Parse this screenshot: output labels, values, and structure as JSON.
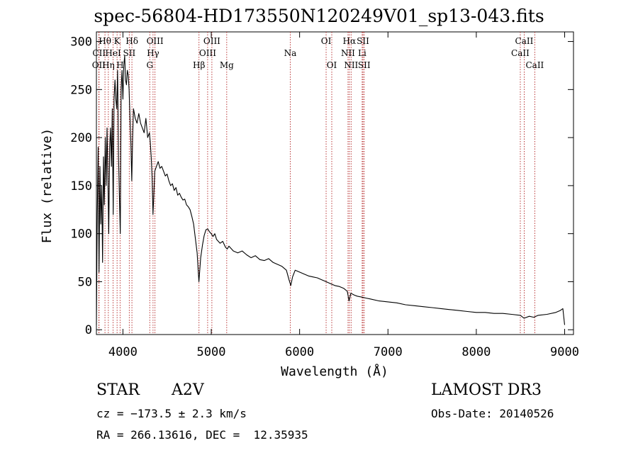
{
  "title": "spec-56804-HD173550N120249V01_sp13-043.fits",
  "info": {
    "class_label": "STAR",
    "subclass_label": "A2V",
    "survey": "LAMOST DR3",
    "cz": "cz = −173.5 ± 2.3 km/s",
    "obs_date": "Obs-Date: 20140526",
    "radec": "RA = 266.13616, DEC =  12.35935"
  },
  "chart_data": {
    "type": "line",
    "title": "spec-56804-HD173550N120249V01_sp13-043.fits",
    "xlabel": "Wavelength (Å)",
    "ylabel": "Flux (relative)",
    "xlim": [
      3700,
      9100
    ],
    "ylim": [
      -5,
      310
    ],
    "x_ticks": [
      4000,
      5000,
      6000,
      7000,
      8000,
      9000
    ],
    "y_ticks": [
      0,
      50,
      100,
      150,
      200,
      250,
      300
    ],
    "line_color": "#000000",
    "marker_color": "#b22222",
    "series": [
      {
        "name": "flux",
        "points": [
          [
            3700,
            5
          ],
          [
            3710,
            120
          ],
          [
            3720,
            190
          ],
          [
            3730,
            60
          ],
          [
            3740,
            170
          ],
          [
            3750,
            110
          ],
          [
            3760,
            150
          ],
          [
            3770,
            70
          ],
          [
            3780,
            180
          ],
          [
            3790,
            130
          ],
          [
            3800,
            200
          ],
          [
            3810,
            150
          ],
          [
            3820,
            210
          ],
          [
            3830,
            160
          ],
          [
            3840,
            100
          ],
          [
            3850,
            190
          ],
          [
            3860,
            210
          ],
          [
            3870,
            170
          ],
          [
            3880,
            230
          ],
          [
            3890,
            120
          ],
          [
            3900,
            240
          ],
          [
            3910,
            260
          ],
          [
            3920,
            240
          ],
          [
            3930,
            230
          ],
          [
            3940,
            270
          ],
          [
            3950,
            180
          ],
          [
            3960,
            140
          ],
          [
            3970,
            100
          ],
          [
            3980,
            250
          ],
          [
            3990,
            270
          ],
          [
            4000,
            240
          ],
          [
            4010,
            275
          ],
          [
            4020,
            285
          ],
          [
            4030,
            260
          ],
          [
            4040,
            255
          ],
          [
            4050,
            270
          ],
          [
            4060,
            265
          ],
          [
            4070,
            250
          ],
          [
            4080,
            220
          ],
          [
            4090,
            195
          ],
          [
            4100,
            155
          ],
          [
            4110,
            200
          ],
          [
            4120,
            230
          ],
          [
            4140,
            220
          ],
          [
            4160,
            215
          ],
          [
            4180,
            225
          ],
          [
            4200,
            215
          ],
          [
            4220,
            210
          ],
          [
            4240,
            205
          ],
          [
            4260,
            220
          ],
          [
            4280,
            200
          ],
          [
            4300,
            205
          ],
          [
            4310,
            195
          ],
          [
            4320,
            180
          ],
          [
            4330,
            160
          ],
          [
            4340,
            120
          ],
          [
            4350,
            140
          ],
          [
            4360,
            165
          ],
          [
            4380,
            170
          ],
          [
            4400,
            175
          ],
          [
            4420,
            168
          ],
          [
            4440,
            170
          ],
          [
            4460,
            165
          ],
          [
            4480,
            160
          ],
          [
            4500,
            162
          ],
          [
            4520,
            155
          ],
          [
            4540,
            150
          ],
          [
            4560,
            152
          ],
          [
            4580,
            145
          ],
          [
            4600,
            148
          ],
          [
            4620,
            140
          ],
          [
            4640,
            142
          ],
          [
            4660,
            138
          ],
          [
            4680,
            135
          ],
          [
            4700,
            136
          ],
          [
            4720,
            130
          ],
          [
            4740,
            128
          ],
          [
            4760,
            125
          ],
          [
            4780,
            118
          ],
          [
            4800,
            110
          ],
          [
            4820,
            95
          ],
          [
            4840,
            80
          ],
          [
            4850,
            65
          ],
          [
            4860,
            50
          ],
          [
            4870,
            62
          ],
          [
            4880,
            75
          ],
          [
            4900,
            88
          ],
          [
            4920,
            98
          ],
          [
            4940,
            104
          ],
          [
            4960,
            105
          ],
          [
            4980,
            102
          ],
          [
            5000,
            100
          ],
          [
            5020,
            97
          ],
          [
            5040,
            100
          ],
          [
            5060,
            94
          ],
          [
            5080,
            92
          ],
          [
            5100,
            90
          ],
          [
            5130,
            92
          ],
          [
            5160,
            86
          ],
          [
            5180,
            84
          ],
          [
            5200,
            87
          ],
          [
            5250,
            82
          ],
          [
            5300,
            80
          ],
          [
            5350,
            82
          ],
          [
            5400,
            78
          ],
          [
            5450,
            75
          ],
          [
            5500,
            77
          ],
          [
            5550,
            73
          ],
          [
            5600,
            72
          ],
          [
            5650,
            74
          ],
          [
            5700,
            70
          ],
          [
            5750,
            68
          ],
          [
            5800,
            66
          ],
          [
            5850,
            62
          ],
          [
            5880,
            52
          ],
          [
            5900,
            46
          ],
          [
            5920,
            55
          ],
          [
            5950,
            62
          ],
          [
            6000,
            60
          ],
          [
            6050,
            58
          ],
          [
            6100,
            56
          ],
          [
            6150,
            55
          ],
          [
            6200,
            54
          ],
          [
            6250,
            52
          ],
          [
            6300,
            50
          ],
          [
            6350,
            48
          ],
          [
            6400,
            46
          ],
          [
            6450,
            45
          ],
          [
            6500,
            43
          ],
          [
            6540,
            40
          ],
          [
            6560,
            30
          ],
          [
            6580,
            38
          ],
          [
            6620,
            36
          ],
          [
            6650,
            35
          ],
          [
            6700,
            34
          ],
          [
            6750,
            33
          ],
          [
            6800,
            32
          ],
          [
            6900,
            30
          ],
          [
            7000,
            29
          ],
          [
            7100,
            28
          ],
          [
            7200,
            26
          ],
          [
            7300,
            25
          ],
          [
            7400,
            24
          ],
          [
            7500,
            23
          ],
          [
            7600,
            22
          ],
          [
            7700,
            21
          ],
          [
            7800,
            20
          ],
          [
            7900,
            19
          ],
          [
            8000,
            18
          ],
          [
            8100,
            18
          ],
          [
            8200,
            17
          ],
          [
            8300,
            17
          ],
          [
            8400,
            16
          ],
          [
            8500,
            15
          ],
          [
            8540,
            12
          ],
          [
            8600,
            14
          ],
          [
            8650,
            13
          ],
          [
            8700,
            15
          ],
          [
            8800,
            16
          ],
          [
            8900,
            18
          ],
          [
            8950,
            20
          ],
          [
            8980,
            22
          ],
          [
            9000,
            5
          ]
        ]
      }
    ],
    "lines": [
      {
        "name": "OII",
        "wavelength": 3727,
        "row": 2
      },
      {
        "name": "CII",
        "wavelength": 3730,
        "row": 1
      },
      {
        "name": "Hθ",
        "wavelength": 3797,
        "row": 0
      },
      {
        "name": "Hη",
        "wavelength": 3835,
        "row": 2
      },
      {
        "name": "HeI",
        "wavelength": 3889,
        "row": 1
      },
      {
        "name": "K",
        "wavelength": 3934,
        "row": 0
      },
      {
        "name": "H",
        "wavelength": 3968,
        "row": 2
      },
      {
        "name": "SII",
        "wavelength": 4072,
        "row": 1
      },
      {
        "name": "Hδ",
        "wavelength": 4102,
        "row": 0
      },
      {
        "name": "G",
        "wavelength": 4304,
        "row": 2
      },
      {
        "name": "Hγ",
        "wavelength": 4341,
        "row": 1
      },
      {
        "name": "OIII",
        "wavelength": 4363,
        "row": 0
      },
      {
        "name": "Hβ",
        "wavelength": 4861,
        "row": 2
      },
      {
        "name": "OIII",
        "wavelength": 4959,
        "row": 1
      },
      {
        "name": "OIII",
        "wavelength": 5007,
        "row": 0
      },
      {
        "name": "Mg",
        "wavelength": 5175,
        "row": 2
      },
      {
        "name": "Na",
        "wavelength": 5894,
        "row": 1
      },
      {
        "name": "OI",
        "wavelength": 6300,
        "row": 0
      },
      {
        "name": "OI",
        "wavelength": 6364,
        "row": 2
      },
      {
        "name": "NII",
        "wavelength": 6548,
        "row": 1
      },
      {
        "name": "Hα",
        "wavelength": 6563,
        "row": 0
      },
      {
        "name": "NII",
        "wavelength": 6583,
        "row": 2
      },
      {
        "name": "Li",
        "wavelength": 6708,
        "row": 1
      },
      {
        "name": "SII",
        "wavelength": 6717,
        "row": 0
      },
      {
        "name": "SII",
        "wavelength": 6731,
        "row": 2
      },
      {
        "name": "CaII",
        "wavelength": 8498,
        "row": 1
      },
      {
        "name": "CaII",
        "wavelength": 8542,
        "row": 0
      },
      {
        "name": "CaII",
        "wavelength": 8662,
        "row": 2
      }
    ]
  }
}
